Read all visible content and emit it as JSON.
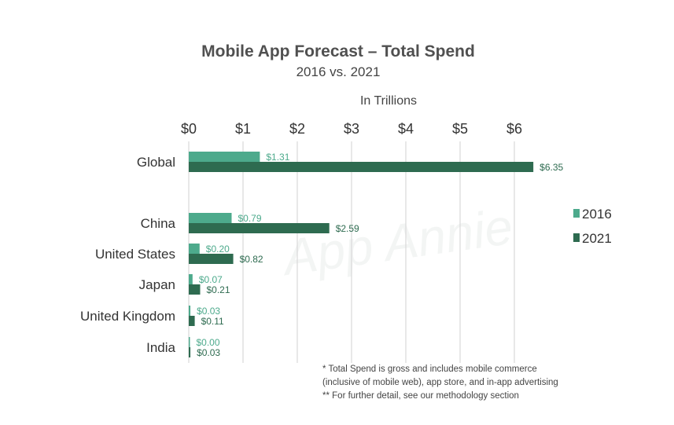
{
  "watermark": "App Annie",
  "chart_data": {
    "type": "bar",
    "orientation": "horizontal",
    "title": "Mobile App Forecast – Total Spend",
    "subtitle": "2016 vs. 2021",
    "xlabel": "In Trillions",
    "ylabel": "",
    "xlim": [
      0,
      7
    ],
    "xticks": [
      "$0",
      "$1",
      "$2",
      "$3",
      "$4",
      "$5",
      "$6"
    ],
    "grid": true,
    "legend_position": "right",
    "categories": [
      "Global",
      "China",
      "United States",
      "Japan",
      "United Kingdom",
      "India"
    ],
    "series": [
      {
        "name": "2016",
        "color": "#4daa8c",
        "values": [
          1.31,
          0.79,
          0.2,
          0.07,
          0.03,
          0.0
        ],
        "labels": [
          "$1.31",
          "$0.79",
          "$0.20",
          "$0.07",
          "$0.03",
          "$0.00"
        ]
      },
      {
        "name": "2021",
        "color": "#2e6b50",
        "values": [
          6.35,
          2.59,
          0.82,
          0.21,
          0.11,
          0.03
        ],
        "labels": [
          "$6.35",
          "$2.59",
          "$0.82",
          "$0.21",
          "$0.11",
          "$0.03"
        ]
      }
    ]
  },
  "footnotes": [
    "*   Total Spend is gross and includes mobile commerce",
    "     (inclusive of mobile web), app store, and in-app advertising",
    "**  For further detail, see our methodology section"
  ]
}
